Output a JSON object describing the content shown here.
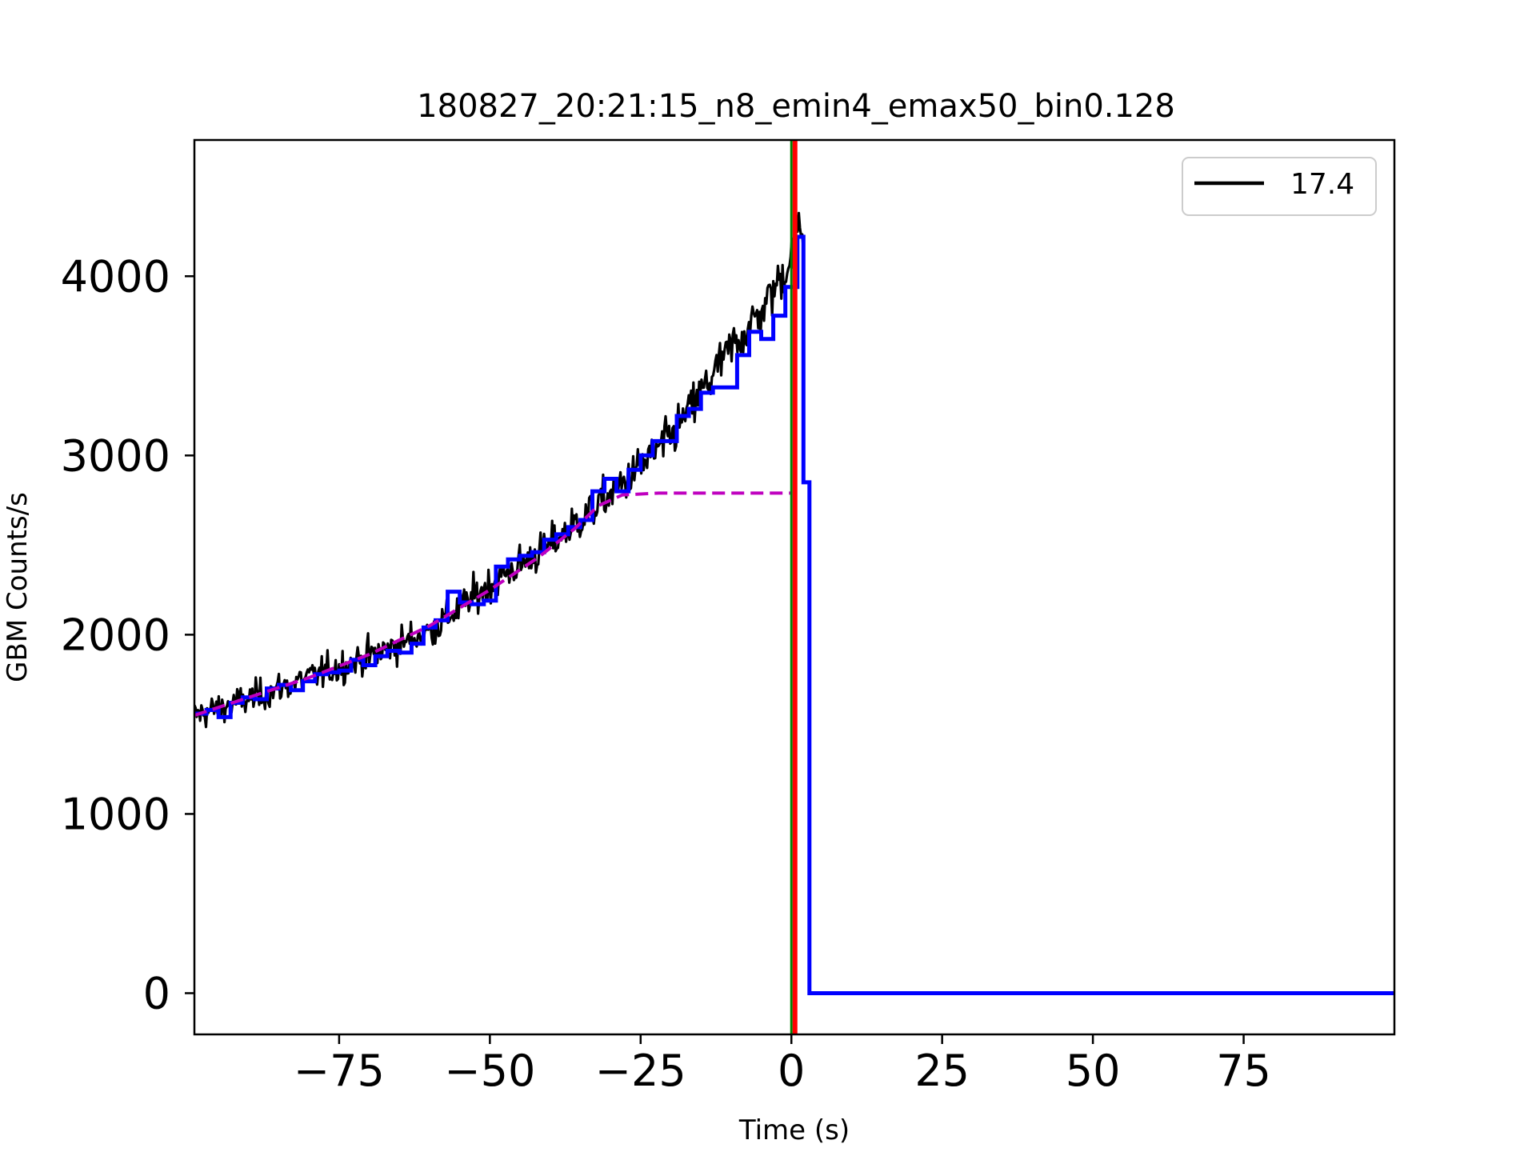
{
  "chart_data": {
    "type": "line",
    "title": "180827_20:21:15_n8_emin4_emax50_bin0.128",
    "xlabel": "Time (s)",
    "ylabel": "GBM Counts/s",
    "xlim": [
      -99,
      100
    ],
    "ylim": [
      -230,
      4760
    ],
    "x_ticks": [
      -75,
      -50,
      -25,
      0,
      25,
      50,
      75
    ],
    "x_tick_labels": [
      "−75",
      "−50",
      "−25",
      "0",
      "25",
      "50",
      "75"
    ],
    "y_ticks": [
      0,
      1000,
      2000,
      3000,
      4000
    ],
    "y_tick_labels": [
      "0",
      "1000",
      "2000",
      "3000",
      "4000"
    ],
    "legend": {
      "location": "top-right",
      "entries": [
        {
          "label": "17.4",
          "color": "#000000"
        }
      ]
    },
    "grid": false,
    "series": [
      {
        "name": "17.4",
        "style": "noisy-line",
        "color": "#000000",
        "x_range": [
          -99,
          2
        ],
        "x": [
          -99,
          -90,
          -80,
          -70,
          -60,
          -50,
          -40,
          -30,
          -20,
          -10,
          -5,
          0,
          1,
          2
        ],
        "y": [
          1550,
          1640,
          1760,
          1880,
          2020,
          2280,
          2500,
          2780,
          3100,
          3600,
          3800,
          4100,
          4300,
          4200
        ]
      },
      {
        "name": "",
        "style": "steps",
        "color": "#0000ff",
        "x": [
          -99,
          -97,
          -95,
          -93,
          -91,
          -89,
          -87,
          -85,
          -83,
          -81,
          -79,
          -77,
          -75,
          -73,
          -71,
          -69,
          -67,
          -65,
          -63,
          -61,
          -59,
          -57,
          -55,
          -53,
          -51,
          -49,
          -47,
          -45,
          -43,
          -41,
          -39,
          -37,
          -35,
          -33,
          -31,
          -29,
          -27,
          -25,
          -23,
          -21,
          -19,
          -17,
          -15,
          -13,
          -11,
          -9,
          -7,
          -5,
          -3,
          -1,
          1,
          2,
          3,
          100
        ],
        "y": [
          1560,
          1580,
          1540,
          1620,
          1650,
          1640,
          1700,
          1720,
          1690,
          1740,
          1780,
          1790,
          1800,
          1860,
          1830,
          1880,
          1910,
          1900,
          1950,
          2040,
          2080,
          2240,
          2180,
          2170,
          2190,
          2380,
          2420,
          2440,
          2460,
          2530,
          2560,
          2600,
          2640,
          2800,
          2870,
          2800,
          2920,
          3000,
          3080,
          3080,
          3220,
          3260,
          3350,
          3380,
          3380,
          3560,
          3690,
          3650,
          3780,
          3940,
          4220,
          2850,
          0,
          0
        ]
      },
      {
        "name": "",
        "style": "dashed",
        "color": "#bf00bf",
        "x": [
          -99,
          -90,
          -80,
          -70,
          -60,
          -50,
          -42,
          -36,
          -32,
          -28,
          -22,
          0
        ],
        "y": [
          1550,
          1650,
          1760,
          1890,
          2050,
          2250,
          2430,
          2590,
          2720,
          2780,
          2790,
          2790
        ]
      }
    ],
    "vertical_lines": [
      {
        "x": 0,
        "color": "#008000"
      },
      {
        "x": 0.6,
        "color": "#ff0000"
      }
    ]
  }
}
